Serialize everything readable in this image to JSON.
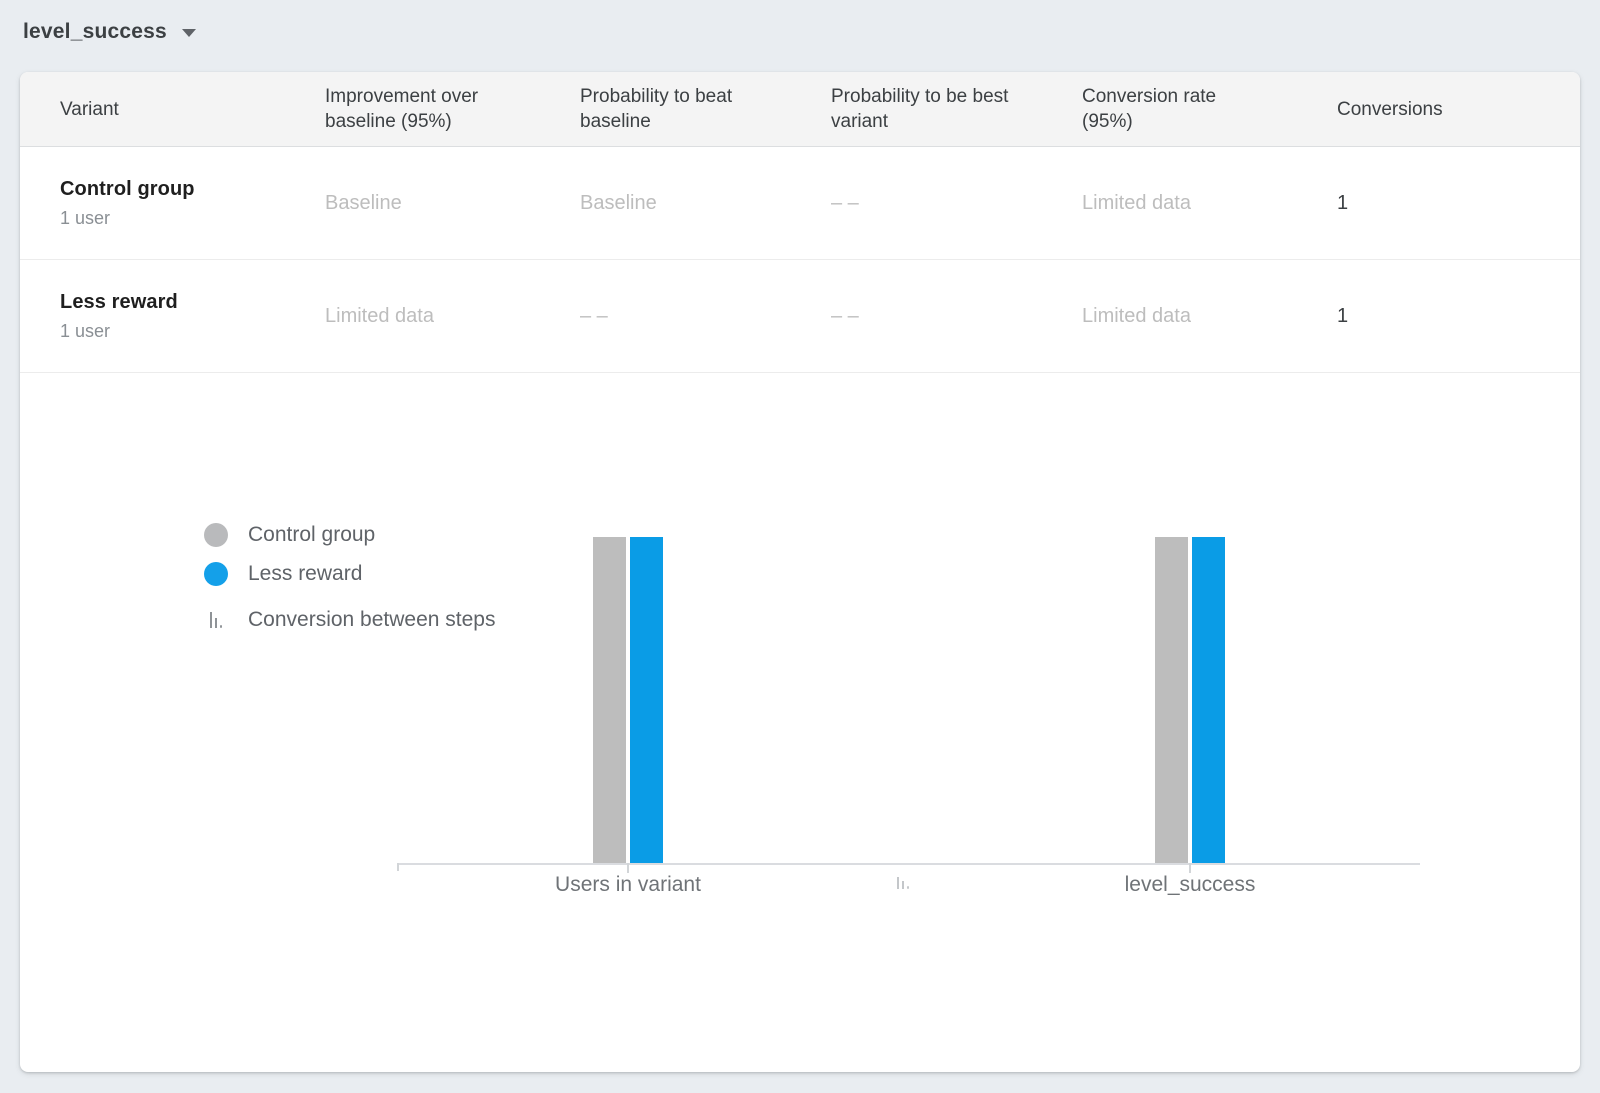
{
  "selector": {
    "label": "level_success"
  },
  "table": {
    "columns": [
      "Variant",
      "Improvement over baseline (95%)",
      "Probability to beat baseline",
      "Probability to be best variant",
      "Conversion rate (95%)",
      "Conversions"
    ],
    "rows": [
      {
        "name": "Control group",
        "subtitle": "1 user",
        "improvement": "Baseline",
        "prob_beat_baseline": "Baseline",
        "prob_best_variant": "– –",
        "conversion_rate": "Limited data",
        "conversions": "1"
      },
      {
        "name": "Less reward",
        "subtitle": "1 user",
        "improvement": "Limited data",
        "prob_beat_baseline": "– –",
        "prob_best_variant": "– –",
        "conversion_rate": "Limited data",
        "conversions": "1"
      }
    ]
  },
  "legend": {
    "items": [
      {
        "label": "Control group",
        "swatch": "circle",
        "color": "#b9babc"
      },
      {
        "label": "Less reward",
        "swatch": "circle",
        "color": "#14a0e9"
      },
      {
        "label": "Conversion between steps",
        "swatch": "steps-icon",
        "color": "#8f9397"
      }
    ]
  },
  "chart_data": {
    "type": "bar",
    "categories": [
      "Users in variant",
      "level_success"
    ],
    "series": [
      {
        "name": "Control group",
        "color": "#bdbdbd",
        "values": [
          1,
          1
        ]
      },
      {
        "name": "Less reward",
        "color": "#0a9ce6",
        "values": [
          1,
          1
        ]
      }
    ],
    "ylim": [
      0,
      1
    ],
    "grid": false,
    "legend_position": "left",
    "axis_color": "#dadce0",
    "between_groups_icon": "conversion-steps-icon"
  },
  "colors": {
    "page_background": "#e9edf1",
    "card_background": "#ffffff",
    "header_background": "#f4f4f4",
    "muted_text": "#bdbdbd",
    "accent_blue": "#0a9ce6",
    "control_gray": "#bdbdbd"
  }
}
